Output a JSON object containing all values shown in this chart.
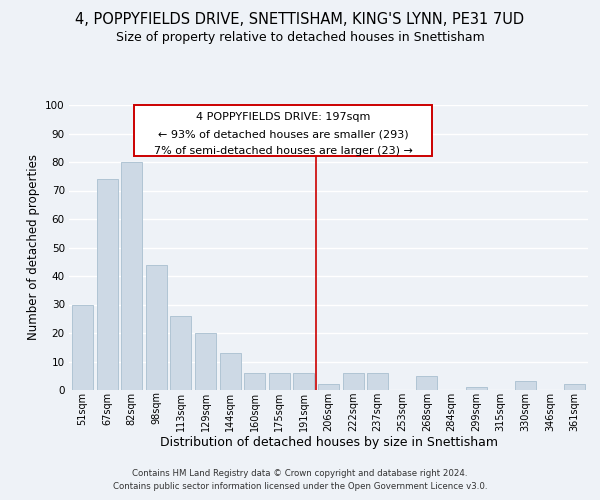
{
  "title": "4, POPPYFIELDS DRIVE, SNETTISHAM, KING'S LYNN, PE31 7UD",
  "subtitle": "Size of property relative to detached houses in Snettisham",
  "xlabel": "Distribution of detached houses by size in Snettisham",
  "ylabel": "Number of detached properties",
  "bar_labels": [
    "51sqm",
    "67sqm",
    "82sqm",
    "98sqm",
    "113sqm",
    "129sqm",
    "144sqm",
    "160sqm",
    "175sqm",
    "191sqm",
    "206sqm",
    "222sqm",
    "237sqm",
    "253sqm",
    "268sqm",
    "284sqm",
    "299sqm",
    "315sqm",
    "330sqm",
    "346sqm",
    "361sqm"
  ],
  "bar_values": [
    30,
    74,
    80,
    44,
    26,
    20,
    13,
    6,
    6,
    6,
    2,
    6,
    6,
    0,
    5,
    0,
    1,
    0,
    3,
    0,
    2
  ],
  "bar_color": "#cdd9e5",
  "bar_edge_color": "#b0c4d4",
  "vline_color": "#cc0000",
  "annotation_title": "4 POPPYFIELDS DRIVE: 197sqm",
  "annotation_line1": "← 93% of detached houses are smaller (293)",
  "annotation_line2": "7% of semi-detached houses are larger (23) →",
  "annotation_box_color": "#ffffff",
  "annotation_box_edge": "#cc0000",
  "background_color": "#eef2f7",
  "grid_color": "#ffffff",
  "footer1": "Contains HM Land Registry data © Crown copyright and database right 2024.",
  "footer2": "Contains public sector information licensed under the Open Government Licence v3.0.",
  "ylim": [
    0,
    100
  ],
  "title_fontsize": 10.5,
  "subtitle_fontsize": 9,
  "xlabel_fontsize": 9,
  "ylabel_fontsize": 8.5
}
